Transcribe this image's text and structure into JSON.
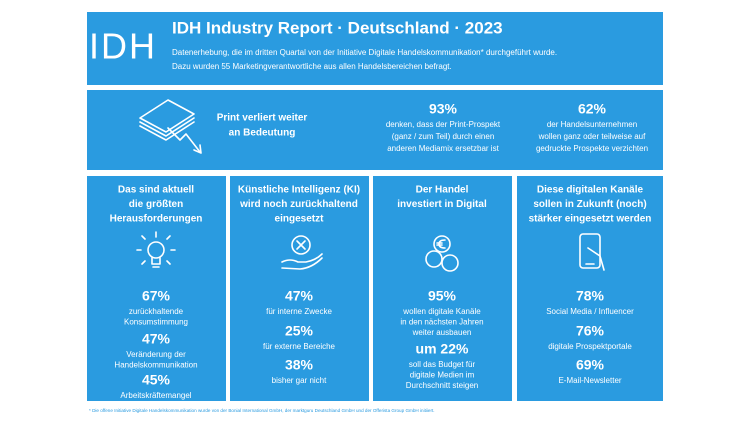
{
  "header": {
    "logo": "IDH",
    "title": "IDH Industry Report · Deutschland · 2023",
    "subtitle": [
      "Datenerhebung, die im dritten Quartal von der Initiative Digitale Handelskommunikation* durchgeführt wurde.",
      "Dazu wurden 55 Marketingverantwortliche aus allen Handelsbereichen befragt."
    ]
  },
  "print": {
    "heading": [
      "Print verliert weiter",
      "an Bedeutung"
    ],
    "stats": [
      {
        "value": "93%",
        "text": [
          "denken, dass der Print-Prospekt",
          "(ganz / zum Teil) durch einen",
          "anderen Mediamix ersetzbar ist"
        ]
      },
      {
        "value": "62%",
        "text": [
          "der Handelsunternehmen",
          "wollen ganz oder teilweise auf",
          "gedruckte Prospekte verzichten"
        ]
      }
    ]
  },
  "columns": [
    {
      "heading": [
        "Das sind aktuell",
        "die größten",
        "Herausforderungen"
      ],
      "stats": [
        {
          "value": "67%",
          "text": [
            "zurückhaltende",
            "Konsumstimmung"
          ]
        },
        {
          "value": "47%",
          "text": [
            "Veränderung der",
            "Handelskommunikation"
          ]
        },
        {
          "value": "45%",
          "text": [
            "Arbeitskräftemangel"
          ]
        }
      ]
    },
    {
      "heading": [
        "Künstliche Intelligenz (KI)",
        "wird noch zurückhaltend",
        "eingesetzt"
      ],
      "stats": [
        {
          "value": "47%",
          "text": [
            "für interne Zwecke"
          ]
        },
        {
          "value": "25%",
          "text": [
            "für externe Bereiche"
          ]
        },
        {
          "value": "38%",
          "text": [
            "bisher gar nicht"
          ]
        }
      ]
    },
    {
      "heading": [
        "Der Handel",
        "investiert in Digital"
      ],
      "stats": [
        {
          "value": "95%",
          "text": [
            "wollen digitale Kanäle",
            "in den nächsten Jahren",
            "weiter ausbauen"
          ]
        },
        {
          "value": "um 22%",
          "text": [
            "soll das Budget für",
            "digitale Medien im",
            "Durchschnitt steigen"
          ]
        }
      ]
    },
    {
      "heading": [
        "Diese digitalen Kanäle",
        "sollen in Zukunft (noch)",
        "stärker eingesetzt werden"
      ],
      "stats": [
        {
          "value": "78%",
          "text": [
            "Social Media / Influencer"
          ]
        },
        {
          "value": "76%",
          "text": [
            "digitale Prospektportale"
          ]
        },
        {
          "value": "69%",
          "text": [
            "E-Mail-Newsletter"
          ]
        }
      ]
    }
  ],
  "footnote": "* Die offene Initiative Digitale Handelskommunikation wurde von der Bonial International GmbH, der marktguru Deutschland GmbH und der Offerista Group GmbH initiiert."
}
